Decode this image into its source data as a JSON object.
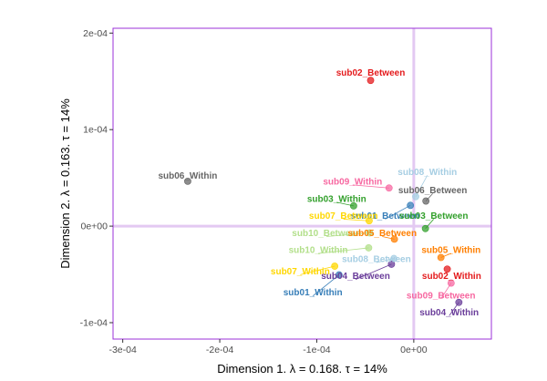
{
  "chart_data": {
    "type": "scatter",
    "title": "",
    "xlabel": "Dimension 1.   λ = 0.168.  τ = 14%",
    "ylabel": "Dimension 2.  λ = 0.163.  τ = 14%",
    "xlim": [
      -0.00031,
      8e-05
    ],
    "ylim": [
      -0.000117,
      0.000205
    ],
    "grid": false,
    "x_ticks": [
      {
        "value": -0.0003,
        "label": "-3e-04"
      },
      {
        "value": -0.0002,
        "label": "-2e-04"
      },
      {
        "value": -0.0001,
        "label": "-1e-04"
      },
      {
        "value": 0,
        "label": "0e+00"
      }
    ],
    "y_ticks": [
      {
        "value": 0.0002,
        "label": "2e-04"
      },
      {
        "value": 0.0001,
        "label": "1e-04"
      },
      {
        "value": 0,
        "label": "0e+00"
      },
      {
        "value": -0.0001,
        "label": "-1e-04"
      }
    ],
    "colors": {
      "frame": "#9b30d9",
      "zero_line": "#e3c9f2"
    },
    "points": [
      {
        "label": "sub02_Between",
        "x": -4.45e-05,
        "y": 0.000151,
        "color": "#e41a1c",
        "lx": -4.45e-05,
        "ly": 0.000159
      },
      {
        "label": "sub06_Within",
        "x": -0.000233,
        "y": 4.65e-05,
        "color": "#666666",
        "lx": -0.000233,
        "ly": 5.25e-05
      },
      {
        "label": "sub09_Within",
        "x": -2.55e-05,
        "y": 3.95e-05,
        "color": "#f768a1",
        "lx": -6.3e-05,
        "ly": 4.65e-05
      },
      {
        "label": "sub08_Within",
        "x": 2e-06,
        "y": 3.05e-05,
        "color": "#a6cee3",
        "lx": 1.4e-05,
        "ly": 5.65e-05
      },
      {
        "label": "sub06_Between",
        "x": 1.25e-05,
        "y": 2.6e-05,
        "color": "#666666",
        "lx": 1.95e-05,
        "ly": 3.75e-05
      },
      {
        "label": "sub03_Within",
        "x": -6.2e-05,
        "y": 2.1e-05,
        "color": "#33a02c",
        "lx": -7.95e-05,
        "ly": 2.85e-05
      },
      {
        "label": "sub01_Between",
        "x": -3.5e-06,
        "y": 2.15e-05,
        "color": "#377eb8",
        "lx": -2.95e-05,
        "ly": 1.1e-05
      },
      {
        "label": "sub07_Between",
        "x": -4.6e-05,
        "y": 5.5e-06,
        "color": "#ffd700",
        "lx": -7.25e-05,
        "ly": 1.1e-05
      },
      {
        "label": "sub03_Between",
        "x": 1.2e-05,
        "y": -2.5e-06,
        "color": "#33a02c",
        "lx": 2.05e-05,
        "ly": 1.1e-05
      },
      {
        "label": "sub10_Between",
        "x": -4.55e-05,
        "y": -7e-06,
        "color": "#b2df8a",
        "lx": -9e-05,
        "ly": -7e-06
      },
      {
        "label": "sub05_Between",
        "x": -2e-05,
        "y": -1.35e-05,
        "color": "#ff7f00",
        "lx": -3.25e-05,
        "ly": -7e-06
      },
      {
        "label": "sub10_Within",
        "x": -4.65e-05,
        "y": -2.25e-05,
        "color": "#b2df8a",
        "lx": -9.85e-05,
        "ly": -2.45e-05
      },
      {
        "label": "sub05_Within",
        "x": 2.8e-05,
        "y": -3.25e-05,
        "color": "#ff7f00",
        "lx": 3.85e-05,
        "ly": -2.45e-05
      },
      {
        "label": "sub08_Between",
        "x": -2.05e-05,
        "y": -3.35e-05,
        "color": "#a6cee3",
        "lx": -3.85e-05,
        "ly": -3.4e-05
      },
      {
        "label": "sub07_Within",
        "x": -8.15e-05,
        "y": -4.15e-05,
        "color": "#ffd700",
        "lx": -0.000117,
        "ly": -4.65e-05
      },
      {
        "label": "sub04_Between",
        "x": -2.3e-05,
        "y": -3.95e-05,
        "color": "#6a3d9a",
        "lx": -6e-05,
        "ly": -5.15e-05
      },
      {
        "label": "sub02_Within",
        "x": 3.45e-05,
        "y": -4.45e-05,
        "color": "#e41a1c",
        "lx": 3.9e-05,
        "ly": -5.15e-05
      },
      {
        "label": "sub01_Within",
        "x": -7.7e-05,
        "y": -5.05e-05,
        "color": "#377eb8",
        "lx": -0.000104,
        "ly": -6.85e-05
      },
      {
        "label": "sub09_Between",
        "x": 3.85e-05,
        "y": -5.9e-05,
        "color": "#f768a1",
        "lx": 2.8e-05,
        "ly": -7.15e-05
      },
      {
        "label": "sub04_Within",
        "x": 4.65e-05,
        "y": -7.9e-05,
        "color": "#6a3d9a",
        "lx": 3.65e-05,
        "ly": -8.9e-05
      }
    ]
  }
}
